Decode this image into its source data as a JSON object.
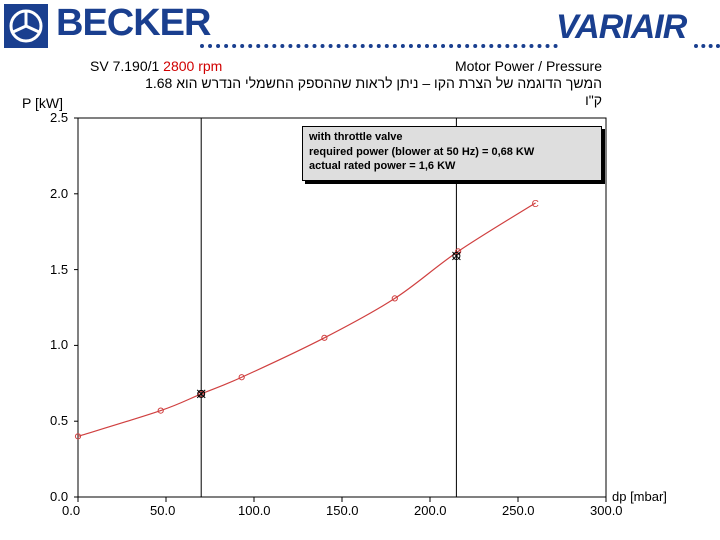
{
  "header": {
    "brand_left": "BECKER",
    "brand_right": "VARIAIR",
    "brand_color": "#1a3f8f"
  },
  "chart_data": {
    "type": "line",
    "title_left": "SV 7.190/1",
    "title_rpm": "2800 rpm",
    "title_right": "Motor Power / Pressure",
    "hebrew_line1": "המשך הדוגמה של הצרת הקו – ניתן לראות שההספק החשמלי הנדרש הוא 1.68",
    "hebrew_line2": "ק\"ו",
    "xlabel": "dp [mbar]",
    "ylabel": "P [kW]",
    "xlim": [
      0,
      300
    ],
    "ylim": [
      0,
      2.5
    ],
    "x_ticks": [
      "0.0",
      "50.0",
      "100.0",
      "150.0",
      "200.0",
      "250.0",
      "300.0"
    ],
    "y_ticks": [
      "0.0",
      "0.5",
      "1.0",
      "1.5",
      "2.0",
      "2.5"
    ],
    "series": [
      {
        "color": "#d04040",
        "x": [
          0,
          47,
          70,
          93,
          140,
          180,
          216,
          260
        ],
        "y": [
          0.4,
          0.57,
          0.68,
          0.79,
          1.05,
          1.31,
          1.62,
          1.94
        ]
      }
    ],
    "end_marker": "C",
    "vertical_lines_x": [
      70,
      215
    ],
    "marked_points": [
      {
        "x": 70,
        "y": 0.68
      },
      {
        "x": 215,
        "y": 1.59
      }
    ],
    "annotation": {
      "line1": "with throttle valve",
      "line2": "required power (blower at 50 Hz) = 0,68 KW",
      "line3": "actual rated power = 1,6 KW"
    },
    "grid": false,
    "colors": {
      "curve": "#d04040",
      "rpm_text": "#d00000"
    }
  }
}
